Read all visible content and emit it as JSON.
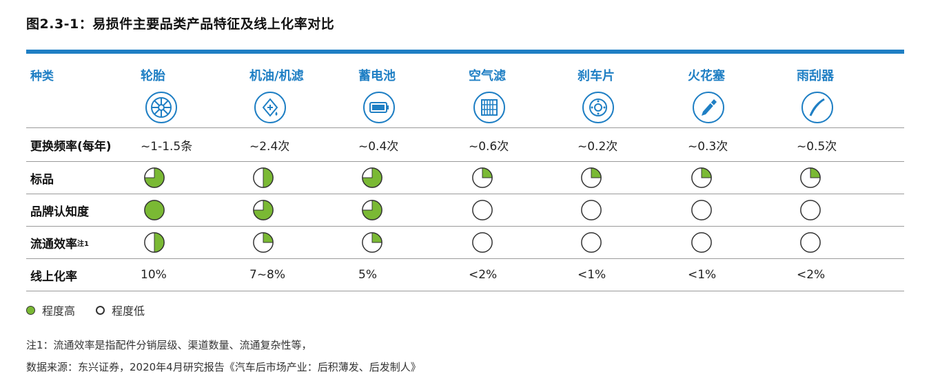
{
  "title": "图2.3-1：易损件主要品类产品特征及线上化率对比",
  "header": {
    "label": "种类",
    "items": [
      {
        "name": "轮胎",
        "icon": "tire-icon"
      },
      {
        "name": "机油/机滤",
        "icon": "oil-filter-icon"
      },
      {
        "name": "蓄电池",
        "icon": "battery-icon"
      },
      {
        "name": "空气滤",
        "icon": "air-filter-icon"
      },
      {
        "name": "刹车片",
        "icon": "brake-pad-icon"
      },
      {
        "name": "火花塞",
        "icon": "spark-plug-icon"
      },
      {
        "name": "雨刮器",
        "icon": "wiper-icon"
      }
    ]
  },
  "rows": {
    "freq": {
      "label": "更换频率(每年)",
      "values": [
        "~1-1.5条",
        "~2.4次",
        "~0.4次",
        "~0.6次",
        "~0.2次",
        "~0.3次",
        "~0.5次"
      ]
    },
    "std": {
      "label": "标品",
      "levels": [
        0.75,
        0.5,
        0.75,
        0.25,
        0.25,
        0.25,
        0.25
      ]
    },
    "brand": {
      "label": "品牌认知度",
      "levels": [
        1,
        0.75,
        0.75,
        0,
        0,
        0,
        0
      ]
    },
    "circ": {
      "label": "流通效率",
      "label_sup": "注1",
      "levels": [
        0.5,
        0.25,
        0.25,
        0,
        0,
        0,
        0
      ]
    },
    "online": {
      "label": "线上化率",
      "values": [
        "10%",
        "7~8%",
        "5%",
        "<2%",
        "<1%",
        "<1%",
        "<2%"
      ]
    }
  },
  "legend": {
    "high": "程度高",
    "low": "程度低"
  },
  "notes": {
    "note1": "注1：流通效率是指配件分销层级、渠道数量、流通复杂性等，",
    "source": "数据来源：东兴证券，2020年4月研究报告《汽车后市场产业：后积薄发、后发制人》"
  },
  "colors": {
    "accent": "#1f7fc4",
    "pie_fill": "#7ab934"
  }
}
